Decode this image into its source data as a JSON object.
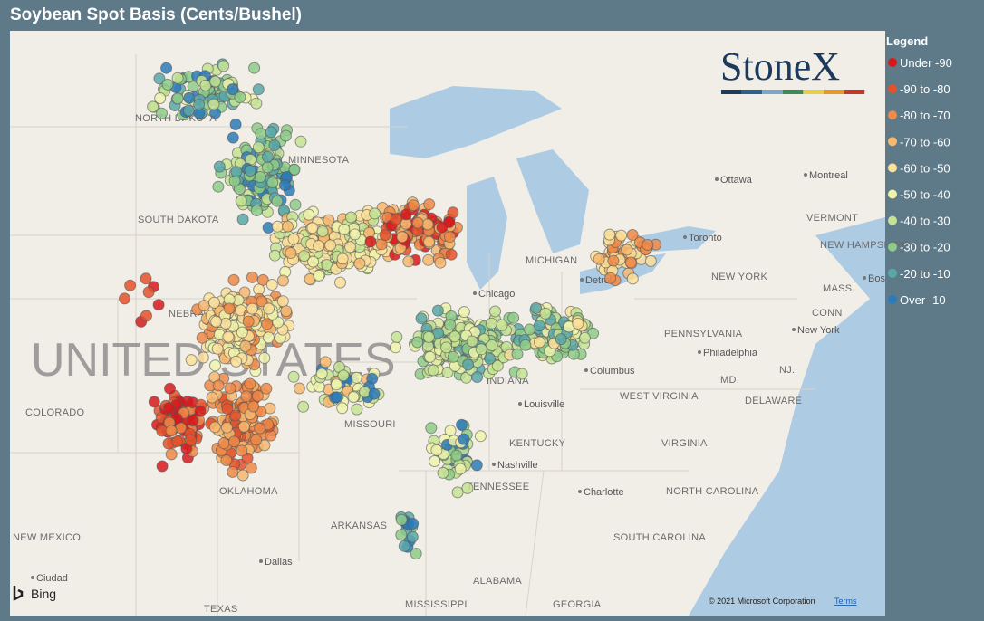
{
  "header": {
    "title": "Soybean Spot Basis (Cents/Bushel)"
  },
  "legend": {
    "title": "Legend",
    "items": [
      {
        "label": "Under -90",
        "color": "#d7191c"
      },
      {
        "label": "-90 to -80",
        "color": "#e4522b"
      },
      {
        "label": "-80 to -70",
        "color": "#ef8a48"
      },
      {
        "label": "-70 to -60",
        "color": "#f6b970"
      },
      {
        "label": "-60 to -50",
        "color": "#fbe19a"
      },
      {
        "label": "-50 to -40",
        "color": "#eef3ac"
      },
      {
        "label": "-40 to -30",
        "color": "#c5e393"
      },
      {
        "label": "-30 to -20",
        "color": "#8ecb88"
      },
      {
        "label": "-20 to -10",
        "color": "#5aa7a8"
      },
      {
        "label": "Over -10",
        "color": "#2b7bba"
      }
    ]
  },
  "logo": {
    "text": "StoneX"
  },
  "map": {
    "country": "UNITED STATES",
    "labels": [
      "NORTH DAKOTA",
      "MINNESOTA",
      "SOUTH DAKOTA",
      "NEBRASKA",
      "COLORADO",
      "MISSOURI",
      "KENTUCKY",
      "TENNESSEE",
      "OKLAHOMA",
      "ARKANSAS",
      "NEW MEXICO",
      "ALABAMA",
      "MISSISSIPPI",
      "GEORGIA",
      "TEXAS",
      "SOUTH CAROLINA",
      "NORTH CAROLINA",
      "VIRGINIA",
      "WEST VIRGINIA",
      "PENNSYLVANIA",
      "NEW YORK",
      "MICHIGAN",
      "INDIANA",
      "VERMONT",
      "NEW HAMPSHIRE",
      "MASS",
      "CONN",
      "DELAWARE",
      "MD.",
      "NJ."
    ],
    "cities": [
      "Chicago",
      "Columbus",
      "Louisville",
      "Nashville",
      "Charlotte",
      "Dallas",
      "Philadelphia",
      "New York",
      "Ottawa",
      "Montreal",
      "Toronto",
      "Detroit",
      "Ciudad",
      "Bos"
    ]
  },
  "attribution": {
    "bing": "Bing",
    "copyright": "© 2021 Microsoft Corporation",
    "terms": "Terms"
  }
}
